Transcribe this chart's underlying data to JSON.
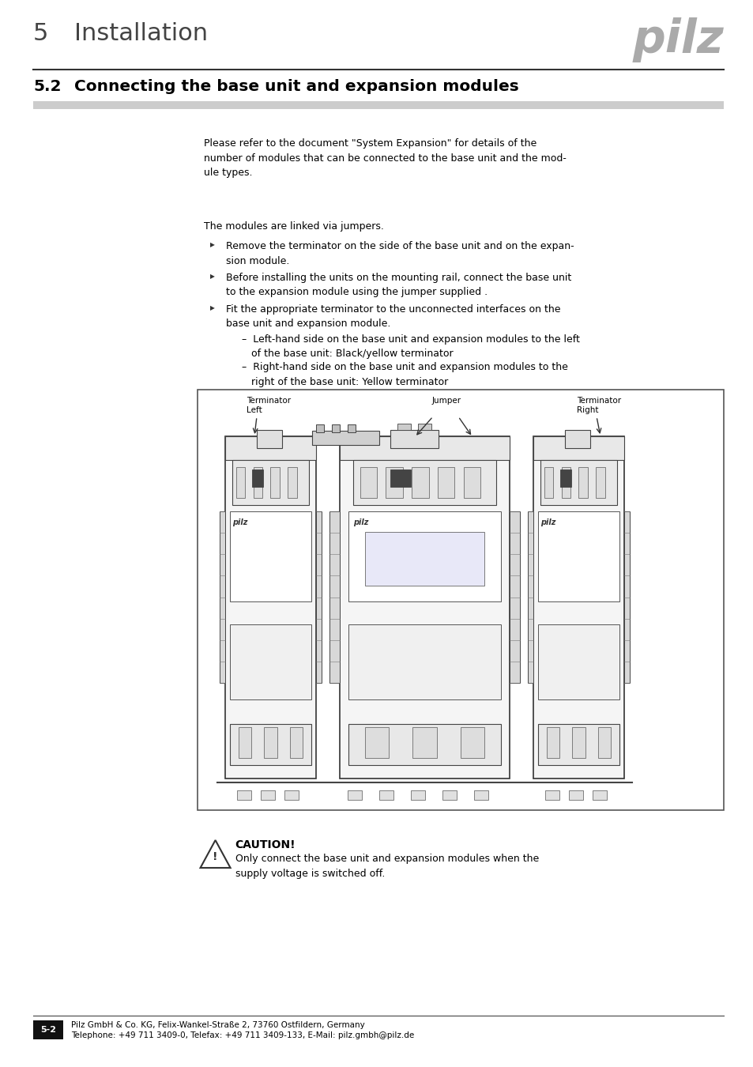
{
  "bg_color": "#ffffff",
  "header_section_number": "5",
  "header_section_title": "Installation",
  "section_number": "5.2",
  "section_title": "Connecting the base unit and expansion modules",
  "intro_text": "Please refer to the document \"System Expansion\" for details of the\nnumber of modules that can be connected to the base unit and the mod-\nule types.",
  "bullet_intro": "The modules are linked via jumpers.",
  "bullet1": "Remove the terminator on the side of the base unit and on the expan-\nsion module.",
  "bullet2": "Before installing the units on the mounting rail, connect the base unit\nto the expansion module using the jumper supplied .",
  "bullet3": "Fit the appropriate terminator to the unconnected interfaces on the\nbase unit and expansion module.",
  "sub1": "–  Left-hand side on the base unit and expansion modules to the left\n   of the base unit: Black/yellow terminator",
  "sub2": "–  Right-hand side on the base unit and expansion modules to the\n   right of the base unit: Yellow terminator",
  "diagram_label_left1": "Terminator",
  "diagram_label_left2": "Left",
  "diagram_label_center": "Jumper",
  "diagram_label_right1": "Terminator",
  "diagram_label_right2": "Right",
  "caution_title": "CAUTION!",
  "caution_text": "Only connect the base unit and expansion modules when the\nsupply voltage is switched off.",
  "footer_page": "5-2",
  "footer_company": "Pilz GmbH & Co. KG, Felix-Wankel-Straße 2, 73760 Ostfildern, Germany",
  "footer_contact": "Telephone: +49 711 3409-0, Telefax: +49 711 3409-133, E-Mail: pilz.gmbh@pilz.de",
  "text_color": "#000000",
  "lm": 0.044,
  "cl": 0.27,
  "cr": 0.96,
  "body_font": 9.0,
  "title_font": 14.5,
  "header_font": 22
}
